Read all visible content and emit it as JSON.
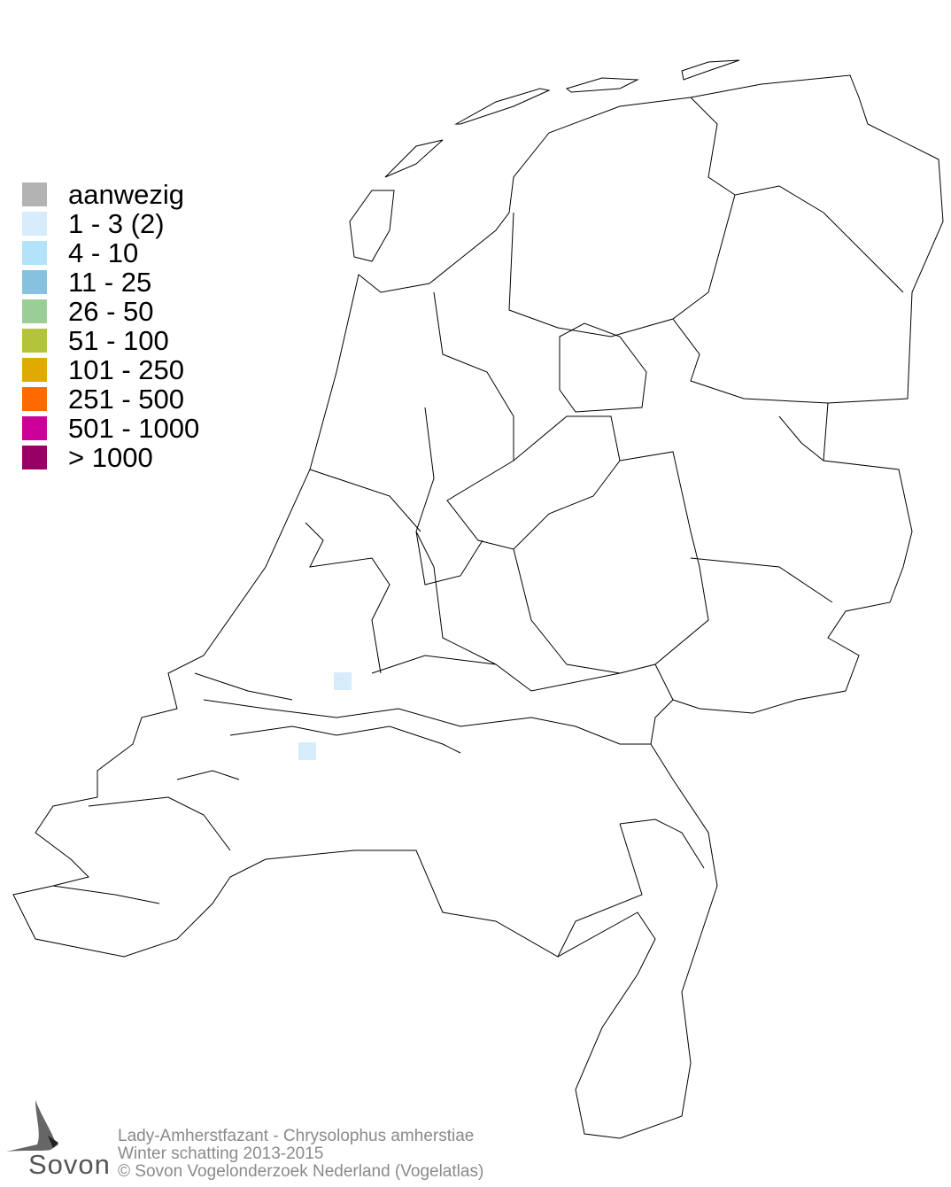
{
  "legend": {
    "items": [
      {
        "label": "aanwezig",
        "color": "#b3b3b3"
      },
      {
        "label": "1 - 3 (2)",
        "color": "#d6ecfa"
      },
      {
        "label": "4 - 10",
        "color": "#b3e3fa"
      },
      {
        "label": "11 - 25",
        "color": "#86c1e0"
      },
      {
        "label": "26 - 50",
        "color": "#9bcd96"
      },
      {
        "label": "51 - 100",
        "color": "#b2c43a"
      },
      {
        "label": "101 - 250",
        "color": "#e0ab00"
      },
      {
        "label": "251 - 500",
        "color": "#ff6a00"
      },
      {
        "label": "501 - 1000",
        "color": "#cc0099"
      },
      {
        "label": "> 1000",
        "color": "#990066"
      }
    ]
  },
  "observations": [
    {
      "category": "1 - 3 (2)",
      "color": "#d6ecfa"
    },
    {
      "category": "1 - 3 (2)",
      "color": "#d6ecfa"
    }
  ],
  "footer": {
    "species": "Lady-Amherstfazant - Chrysolophus amherstiae",
    "period": "Winter schatting 2013-2015",
    "copyright": "© Sovon Vogelonderzoek Nederland (Vogelatlas)"
  },
  "logo": {
    "text": "Sovon"
  }
}
